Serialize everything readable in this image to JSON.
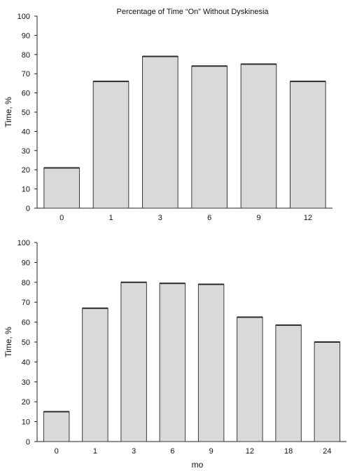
{
  "chart_data": [
    {
      "type": "bar",
      "title": "Percentage of Time “On” Without Dyskinesia",
      "xlabel": "",
      "ylabel": "Time, %",
      "ylim": [
        0,
        100
      ],
      "yticks": [
        0,
        10,
        20,
        30,
        40,
        50,
        60,
        70,
        80,
        90,
        100
      ],
      "categories": [
        "0",
        "1",
        "3",
        "6",
        "9",
        "12"
      ],
      "values": [
        21,
        66,
        79,
        74,
        75,
        66
      ],
      "grid": false,
      "bar_color": "#d9d9d9"
    },
    {
      "type": "bar",
      "title": "",
      "xlabel": "mo",
      "ylabel": "Time, %",
      "ylim": [
        0,
        100
      ],
      "yticks": [
        0,
        10,
        20,
        30,
        40,
        50,
        60,
        70,
        80,
        90,
        100
      ],
      "categories": [
        "0",
        "1",
        "3",
        "6",
        "9",
        "12",
        "18",
        "24"
      ],
      "values": [
        15,
        67,
        80,
        79.5,
        79,
        62.5,
        58.5,
        50
      ],
      "grid": false,
      "bar_color": "#d9d9d9"
    }
  ]
}
